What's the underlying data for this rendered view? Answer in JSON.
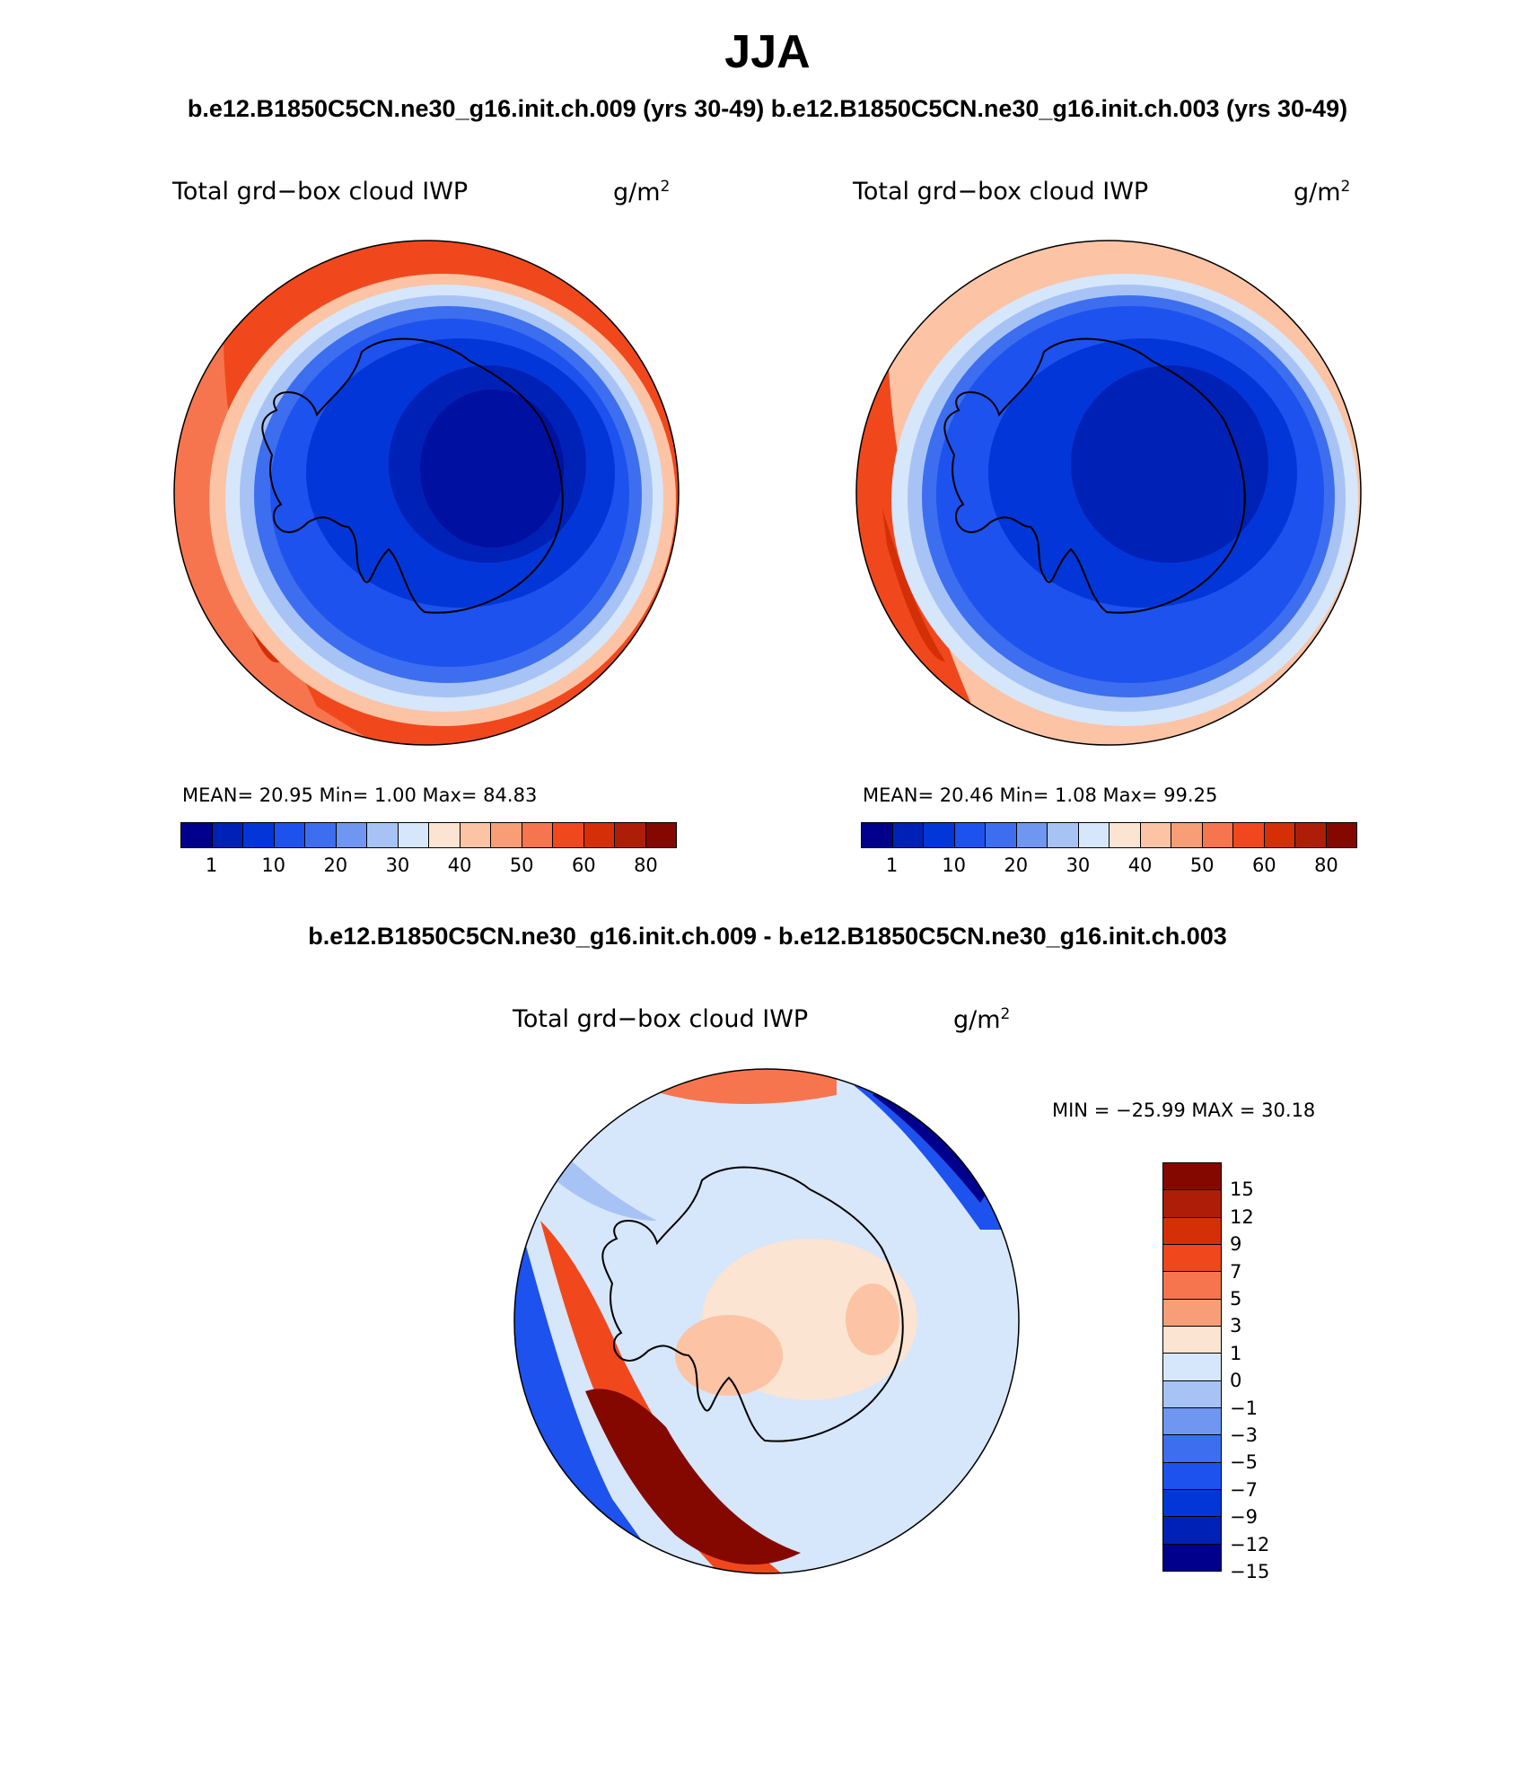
{
  "title": "JJA",
  "panel_titles": "b.e12.B1850C5CN.ne30_g16.init.ch.009 (yrs 30-49) b.e12.B1850C5CN.ne30_g16.init.ch.003 (yrs 30-49)",
  "diff_title": "b.e12.B1850C5CN.ne30_g16.init.ch.009 - b.e12.B1850C5CN.ne30_g16.init.ch.003",
  "variable": "Total grd−box cloud IWP",
  "units": "g/m",
  "units_exp": "2",
  "panel1": {
    "stats": "MEAN=   20.95   Min=     1.00   Max=   84.83"
  },
  "panel2": {
    "stats": "MEAN=   20.46   Min=     1.08   Max=   99.25"
  },
  "diff": {
    "stats": "MIN =  −25.99  MAX =    30.18"
  },
  "abs_colorbar": {
    "colors": [
      "#00008c",
      "#0021b5",
      "#0236d8",
      "#1d52ee",
      "#3c6eef",
      "#6f97f2",
      "#a7c3f6",
      "#d6e6fb",
      "#fce4d2",
      "#fcc3a5",
      "#f89e77",
      "#f7754e",
      "#f0481c",
      "#d52f08",
      "#ae1d08",
      "#840800"
    ],
    "labels": [
      "1",
      "10",
      "20",
      "30",
      "40",
      "50",
      "60",
      "80"
    ]
  },
  "diff_colorbar": {
    "colors": [
      "#840800",
      "#ae1d08",
      "#d52f08",
      "#f0481c",
      "#f7754e",
      "#f89e77",
      "#fce4d2",
      "#d6e6fb",
      "#a7c3f6",
      "#6f97f2",
      "#3c6eef",
      "#1d52ee",
      "#0236d8",
      "#0021b5",
      "#00008c"
    ],
    "labels": [
      "15",
      "12",
      "9",
      "7",
      "5",
      "3",
      "1",
      "0",
      "−1",
      "−3",
      "−5",
      "−7",
      "−9",
      "−12",
      "−15"
    ]
  }
}
